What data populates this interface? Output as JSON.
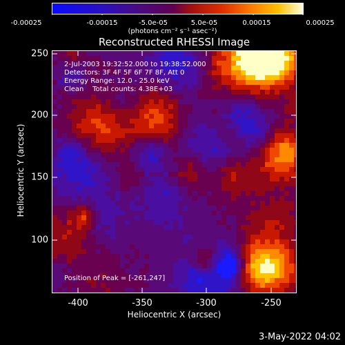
{
  "colorbar": {
    "ticks": [
      "-0.00025",
      "-0.00015",
      "-5.0e-05",
      "5.0e-05",
      "0.00015",
      "0.00025"
    ],
    "units": "(photons cm⁻² s⁻¹ asec⁻²)",
    "colors": [
      "#1010ff",
      "#3a0a8a",
      "#5a0060",
      "#b01010",
      "#ff5a00",
      "#ffb000",
      "#ffffc0"
    ]
  },
  "title": "Reconstructed RHESSI Image",
  "annotations": {
    "time": "2-Jul-2003 19:32:52.000 to 19:38:52.000",
    "detectors": "Detectors: 3F 4F 5F 6F 7F 8F, Att 0",
    "energy": "Energy Range: 12.0 - 25.0 keV",
    "clean": "Clean    Total counts: 4.38E+03",
    "peak": "Position of Peak = [-261,247]"
  },
  "axes": {
    "xlabel": "Heliocentric X (arcsec)",
    "ylabel": "Heliocentric Y (arcsec)",
    "xticks": [
      "-400",
      "-350",
      "-300",
      "-250"
    ],
    "yticks": [
      "250",
      "200",
      "150",
      "100"
    ],
    "xrange": [
      -415,
      -225
    ],
    "yrange": [
      55,
      253
    ]
  },
  "footer": {
    "timestamp": "3-May-2022 04:02"
  }
}
